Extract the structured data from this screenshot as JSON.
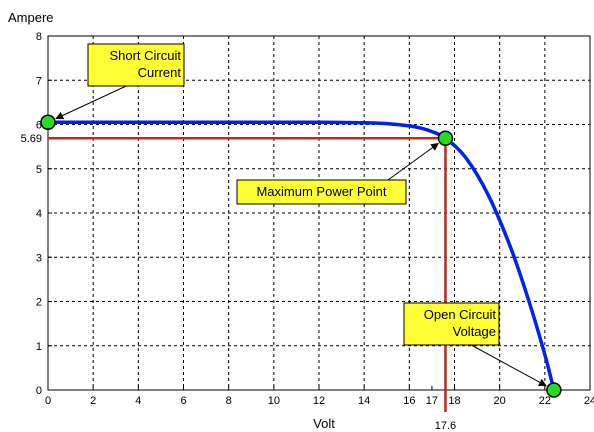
{
  "chart_data": {
    "type": "line",
    "xlabel": "Volt",
    "ylabel": "Ampere",
    "xlim": [
      0,
      24
    ],
    "ylim": [
      0,
      8
    ],
    "x_ticks": [
      "0",
      "2",
      "4",
      "6",
      "8",
      "10",
      "12",
      "14",
      "16",
      "17",
      "18",
      "20",
      "22",
      "24"
    ],
    "x_tick_values": [
      0,
      2,
      4,
      6,
      8,
      10,
      12,
      14,
      16,
      17,
      18,
      20,
      22,
      24
    ],
    "x_grid_values": [
      0,
      2,
      4,
      6,
      8,
      10,
      12,
      14,
      16,
      18,
      20,
      22,
      24
    ],
    "y_ticks": [
      "0",
      "1",
      "2",
      "3",
      "4",
      "5",
      "6",
      "7",
      "8"
    ],
    "y_tick_values": [
      0,
      1,
      2,
      3,
      4,
      5,
      6,
      7,
      8
    ],
    "grid": "dashed",
    "colors": {
      "curve": "#0022ee",
      "marker_lines": "#c0281a",
      "point_fill": "#22dd22",
      "annotation_box": "#ffff33"
    },
    "series": [
      {
        "x": [
          0,
          2,
          4,
          6,
          8,
          10,
          12,
          14,
          15,
          16,
          16.5,
          17,
          17.6,
          18.5,
          19.5,
          20.5,
          21.3,
          22,
          22.4
        ],
        "y": [
          6.05,
          6.05,
          6.05,
          6.05,
          6.05,
          6.05,
          6.05,
          6.04,
          6.02,
          5.97,
          5.92,
          5.84,
          5.69,
          5.25,
          4.4,
          3.2,
          2.0,
          0.8,
          0
        ]
      }
    ],
    "points": [
      {
        "name": "short-circuit",
        "x": 0,
        "y": 6.05
      },
      {
        "name": "max-power",
        "x": 17.6,
        "y": 5.69
      },
      {
        "name": "open-circuit",
        "x": 22.4,
        "y": 0
      }
    ],
    "reference": {
      "x": 17.6,
      "y": 5.69,
      "x_label": "17.6",
      "y_label": "5.69"
    },
    "annotations": [
      {
        "lines": [
          "Short Circuit",
          "Current"
        ],
        "point": "short-circuit"
      },
      {
        "lines": [
          "Maximum Power Point"
        ],
        "point": "max-power"
      },
      {
        "lines": [
          "Open Circuit",
          "Voltage"
        ],
        "point": "open-circuit"
      }
    ]
  }
}
